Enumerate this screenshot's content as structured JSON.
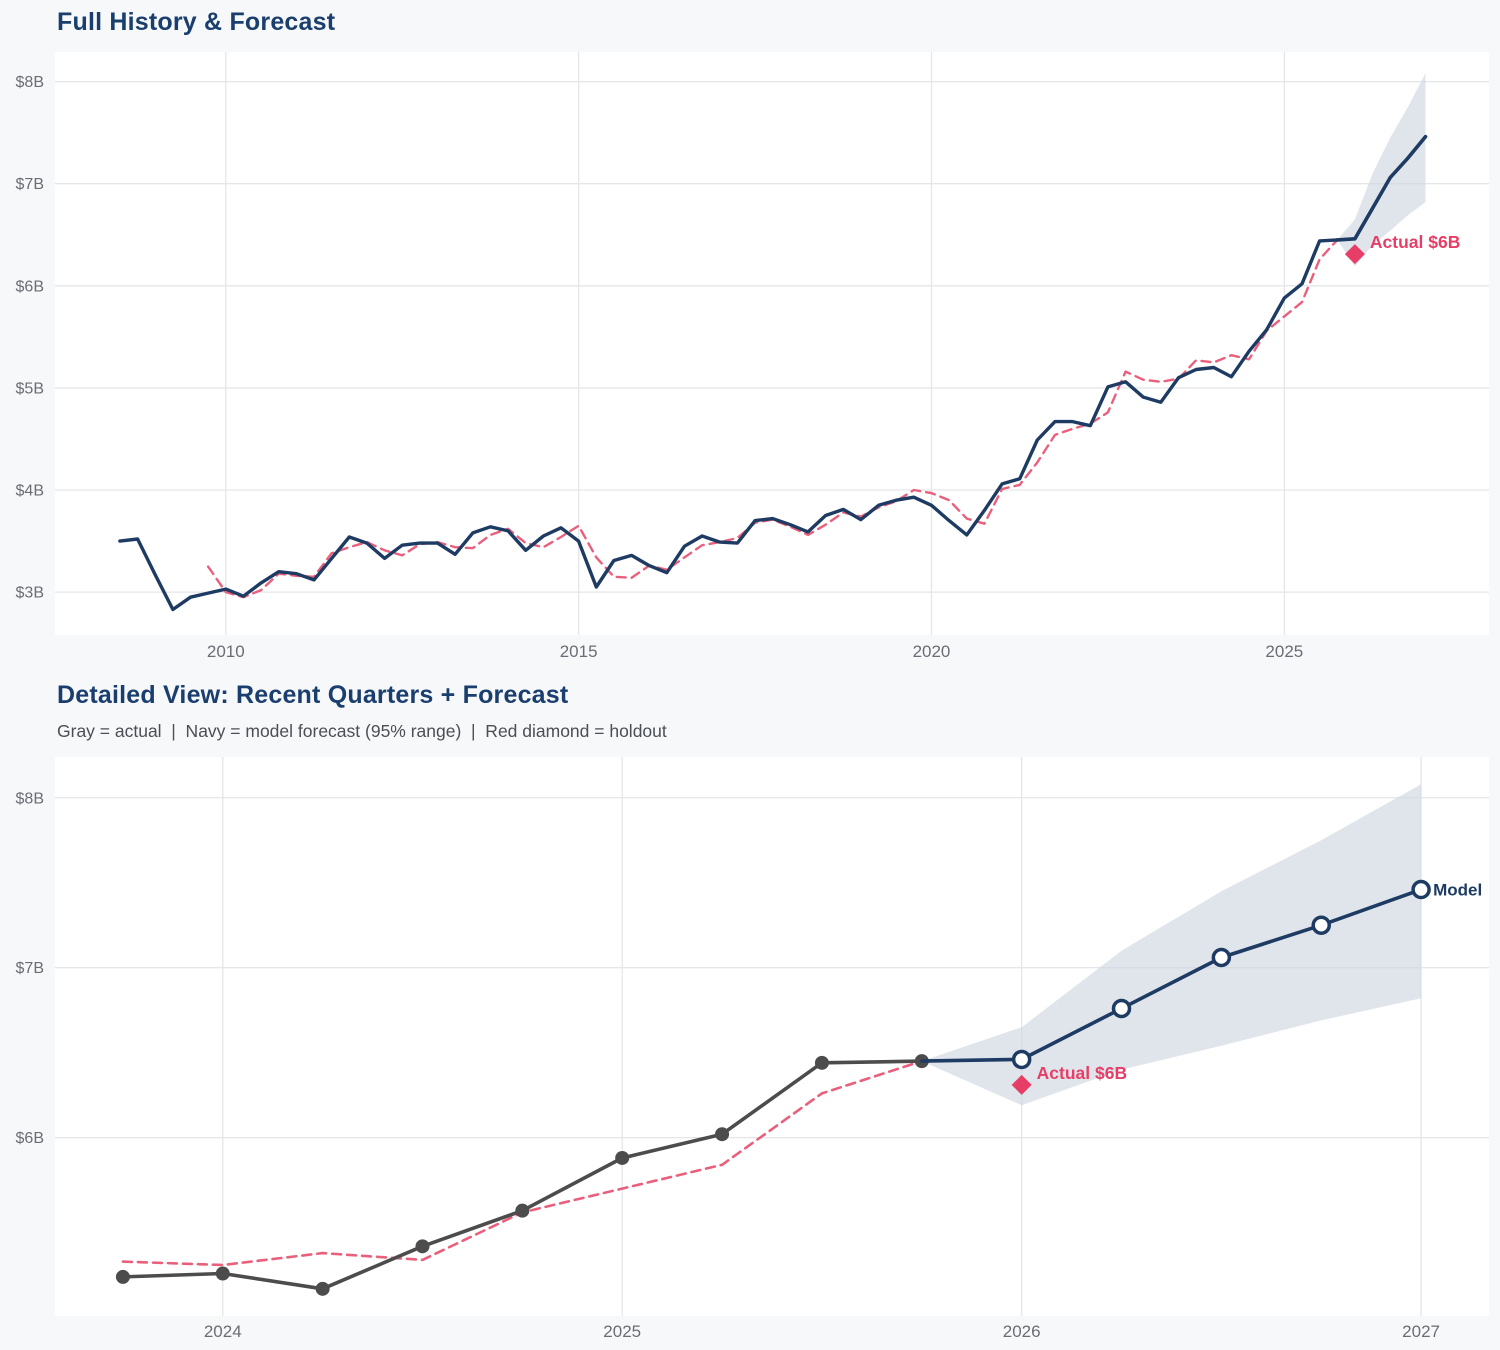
{
  "colors": {
    "background": "#f7f8fa",
    "plot_background": "#ffffff",
    "gridline": "#e5e6ea",
    "navy": "#1d3b63",
    "fit_pink": "#e9607d",
    "holdout_red": "#e63e66",
    "actual_gray": "#4c4c4c",
    "band_fill": "#ccd4e0",
    "title_navy": "#1a3e6e",
    "tick_text": "#6a6d73"
  },
  "chart_data": [
    {
      "type": "line",
      "title": "Full History & Forecast",
      "xlim": [
        2007.58,
        2027.9
      ],
      "ylim": [
        2.58,
        8.29
      ],
      "x_ticks": [
        2010,
        2015,
        2020,
        2025
      ],
      "x_tick_labels": [
        "2010",
        "2015",
        "2020",
        "2025"
      ],
      "y_ticks": [
        8,
        7,
        6,
        5,
        4,
        3
      ],
      "y_tick_labels": [
        "$8B",
        "$7B",
        "$6B",
        "$5B",
        "$4B",
        "$3B"
      ],
      "grid": true,
      "series": [
        {
          "name": "forecast_band_95",
          "kind": "band",
          "color": "#ccd4e0",
          "x_start": 2025.75,
          "x_step": 0.25,
          "upper": [
            6.45,
            6.65,
            7.1,
            7.45,
            7.75,
            8.08
          ],
          "lower": [
            6.45,
            6.19,
            6.4,
            6.54,
            6.69,
            6.82
          ]
        },
        {
          "name": "model_fit",
          "kind": "line",
          "dashed": true,
          "width": 2.4,
          "color": "#e9607d",
          "x_start": 2009.75,
          "x_step": 0.25,
          "values": [
            3.25,
            3.0,
            2.95,
            3.02,
            3.18,
            3.16,
            3.15,
            3.38,
            3.44,
            3.49,
            3.41,
            3.36,
            3.47,
            3.49,
            3.44,
            3.43,
            3.56,
            3.62,
            3.48,
            3.44,
            3.54,
            3.65,
            3.34,
            3.15,
            3.14,
            3.26,
            3.22,
            3.34,
            3.46,
            3.49,
            3.53,
            3.68,
            3.71,
            3.64,
            3.56,
            3.66,
            3.78,
            3.74,
            3.83,
            3.89,
            4.0,
            3.97,
            3.9,
            3.72,
            3.67,
            4.01,
            4.05,
            4.27,
            4.54,
            4.6,
            4.65,
            4.76,
            5.16,
            5.08,
            5.06,
            5.09,
            5.27,
            5.25,
            5.32,
            5.28,
            5.56,
            5.7,
            5.84,
            6.26,
            6.45
          ]
        },
        {
          "name": "actual_history",
          "kind": "line",
          "dashed": false,
          "width": 3.4,
          "color": "#1d3b63",
          "x_start": 2008.5,
          "x_step": 0.25,
          "values": [
            3.5,
            3.52,
            3.17,
            2.83,
            2.95,
            2.99,
            3.03,
            2.96,
            3.09,
            3.2,
            3.18,
            3.12,
            3.33,
            3.54,
            3.48,
            3.33,
            3.46,
            3.48,
            3.48,
            3.37,
            3.58,
            3.64,
            3.6,
            3.41,
            3.55,
            3.63,
            3.5,
            3.05,
            3.31,
            3.36,
            3.26,
            3.19,
            3.45,
            3.55,
            3.49,
            3.48,
            3.7,
            3.72,
            3.66,
            3.59,
            3.75,
            3.81,
            3.71,
            3.85,
            3.9,
            3.93,
            3.85,
            3.7,
            3.56,
            3.8,
            4.06,
            4.11,
            4.49,
            4.67,
            4.67,
            4.63,
            5.01,
            5.06,
            4.91,
            4.86,
            5.1,
            5.18,
            5.2,
            5.11,
            5.36,
            5.57,
            5.88,
            6.02,
            6.44,
            6.45
          ]
        },
        {
          "name": "model_forecast",
          "kind": "line",
          "dashed": false,
          "width": 3.6,
          "color": "#1d3b63",
          "x_start": 2025.75,
          "x_step": 0.25,
          "values": [
            6.45,
            6.46,
            6.76,
            7.06,
            7.25,
            7.46
          ]
        }
      ],
      "holdout": {
        "x": 2026.0,
        "value": 6.31,
        "label": "Actual $6B",
        "color": "#e63e66"
      }
    },
    {
      "type": "line",
      "title": "Detailed View: Recent Quarters + Forecast",
      "subtitle": "Gray = actual  |  Navy = model forecast (95% range)  |  Red diamond = holdout",
      "xlim": [
        2023.58,
        2027.17
      ],
      "ylim": [
        4.95,
        8.24
      ],
      "x_ticks": [
        2024,
        2025,
        2026,
        2027
      ],
      "x_tick_labels": [
        "2024",
        "2025",
        "2026",
        "2027"
      ],
      "y_ticks": [
        8,
        7,
        6
      ],
      "y_tick_labels": [
        "$8B",
        "$7B",
        "$6B"
      ],
      "grid": true,
      "series": [
        {
          "name": "forecast_band_95",
          "kind": "band",
          "color": "#ccd4e0",
          "x_start": 2025.75,
          "x_step": 0.25,
          "upper": [
            6.45,
            6.65,
            7.1,
            7.45,
            7.75,
            8.08
          ],
          "lower": [
            6.45,
            6.19,
            6.4,
            6.54,
            6.69,
            6.82
          ]
        },
        {
          "name": "model_fit",
          "kind": "line",
          "dashed": true,
          "width": 2.6,
          "color": "#e9607d",
          "x_start": 2023.75,
          "x_step": 0.25,
          "values": [
            5.27,
            5.25,
            5.32,
            5.28,
            5.56,
            5.7,
            5.84,
            6.26,
            6.45
          ]
        },
        {
          "name": "actual_recent",
          "kind": "line",
          "dashed": false,
          "width": 3.6,
          "color": "#4c4c4c",
          "marker": "dot",
          "marker_r": 7,
          "x_start": 2023.75,
          "x_step": 0.25,
          "values": [
            5.18,
            5.2,
            5.11,
            5.36,
            5.57,
            5.88,
            6.02,
            6.44,
            6.45
          ]
        },
        {
          "name": "model_forecast",
          "kind": "line",
          "dashed": false,
          "width": 3.6,
          "color": "#1d3b63",
          "marker": "open",
          "marker_r": 8,
          "marker_skip_first": true,
          "end_label": "Model",
          "x_start": 2025.75,
          "x_step": 0.25,
          "values": [
            6.45,
            6.46,
            6.76,
            7.06,
            7.25,
            7.46
          ]
        }
      ],
      "holdout": {
        "x": 2026.0,
        "value": 6.31,
        "label": "Actual $6B",
        "color": "#e63e66"
      }
    }
  ]
}
